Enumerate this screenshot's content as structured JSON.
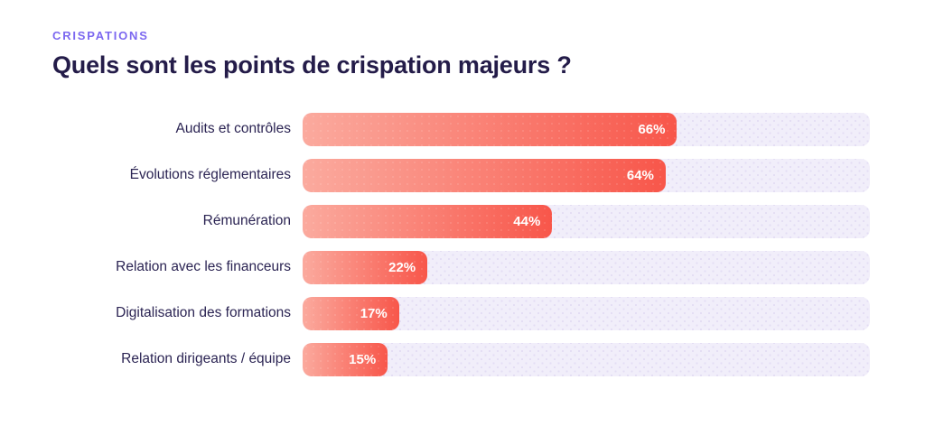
{
  "header": {
    "eyebrow": "CRISPATIONS",
    "title": "Quels sont les points de crispation majeurs ?"
  },
  "chart_data": {
    "type": "bar",
    "orientation": "horizontal",
    "title": "Quels sont les points de crispation majeurs ?",
    "subtitle": "CRISPATIONS",
    "categories": [
      "Audits et contrôles",
      "Évolutions réglementaires",
      "Rémunération",
      "Relation avec les financeurs",
      "Digitalisation des formations",
      "Relation dirigeants / équipe"
    ],
    "values": [
      66,
      64,
      44,
      22,
      17,
      15
    ],
    "value_labels": [
      "66%",
      "64%",
      "44%",
      "22%",
      "17%",
      "15%"
    ],
    "value_suffix": "%",
    "xlim": [
      0,
      100
    ],
    "grid": false,
    "legend": false,
    "colors": {
      "eyebrow": "#7c68f0",
      "title_text": "#241c49",
      "category_text": "#2b2453",
      "bar_gradient_start": "#fbaa9e",
      "bar_gradient_end": "#f8564a",
      "track_background": "#f1eefa",
      "track_dot": "#e3ddf4",
      "value_label_text": "#ffffff"
    }
  }
}
